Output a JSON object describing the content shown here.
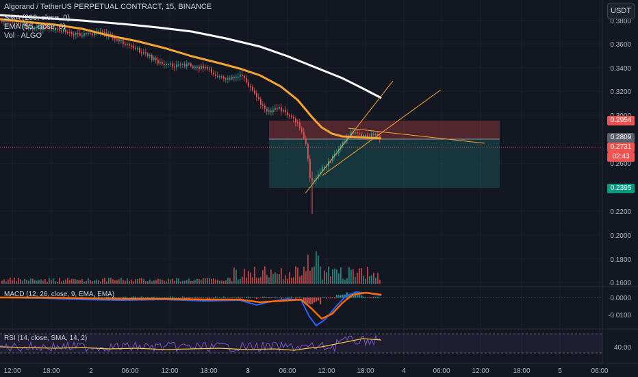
{
  "header": {
    "symbol_title": "Algorand / TetherUS PERPETUAL CONTRACT, 15, BINANCE",
    "sma_label": "SMA (200, close, 0)",
    "ema_label": "EMA (55, close, 0)",
    "vol_label": "Vol · ALGO",
    "currency_button": "USDT"
  },
  "price_axis": {
    "ticks": [
      "0.3800",
      "0.3600",
      "0.3400",
      "0.3200",
      "0.3000",
      "0.2600",
      "0.2200",
      "0.2000",
      "0.1800",
      "0.1600"
    ],
    "tags": {
      "upper": "0.2954",
      "last_close": "0.2809",
      "current": "0.2731",
      "countdown": "02:43",
      "lower": "0.2395"
    }
  },
  "time_axis": {
    "ticks": [
      "12:00",
      "18:00",
      "2",
      "06:00",
      "12:00",
      "18:00",
      "3",
      "06:00",
      "12:00",
      "18:00",
      "4",
      "06:00",
      "12:00",
      "18:00",
      "5",
      "06:00"
    ]
  },
  "macd": {
    "label": "MACD (12, 26, close, 9, EMA, EMA)",
    "ticks": [
      "0.0000",
      "-0.0100"
    ]
  },
  "rsi": {
    "label": "RSI (14, close, SMA, 14, 2)",
    "ticks": [
      "40.00"
    ]
  },
  "colors": {
    "background": "#131722",
    "up_candle": "#26a69a",
    "down_candle": "#ef5350",
    "ema": "#f7a532",
    "sma": "#ffffff",
    "macd_line": "#2962ff",
    "signal_line": "#ff6d00",
    "rsi_line": "#7e57c2",
    "rsi_ma": "#f7c948"
  }
}
